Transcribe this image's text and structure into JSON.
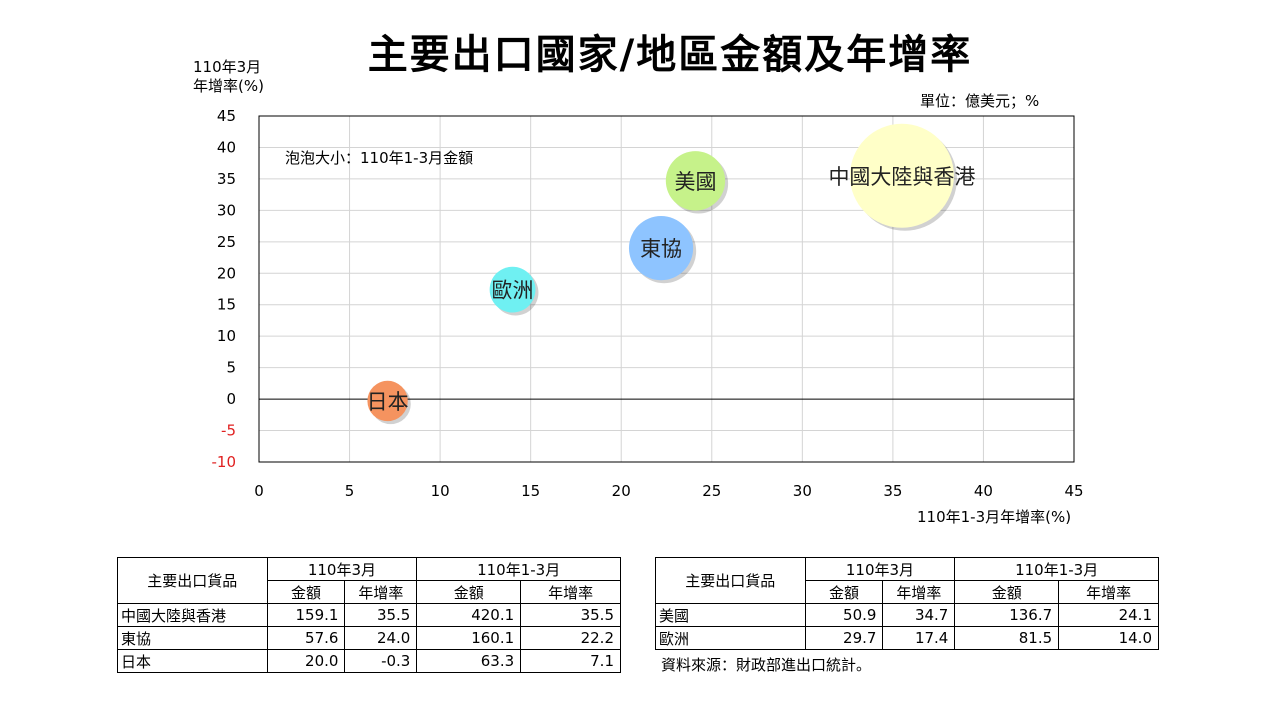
{
  "title": "主要出口國家/地區金額及年增率",
  "unit_label": "單位：億美元；%",
  "bubble_note": "泡泡大小：110年1-3月金額",
  "source": "資料來源：財政部進出口統計。",
  "chart_data": {
    "type": "scatter",
    "title": "主要出口國家/地區金額及年增率",
    "ylabel_lines": [
      "110年3月",
      "年增率(%)"
    ],
    "xlabel": "110年1-3月年增率(%)",
    "xlim": [
      0,
      45
    ],
    "ylim": [
      -10,
      45
    ],
    "x_ticks": [
      "0",
      "5",
      "10",
      "15",
      "20",
      "25",
      "30",
      "35",
      "40",
      "45"
    ],
    "y_ticks": [
      "45",
      "40",
      "35",
      "30",
      "25",
      "20",
      "15",
      "10",
      "5",
      "0",
      "-5",
      "-10"
    ],
    "grid": true,
    "points": [
      {
        "name": "中國大陸與香港",
        "x": 35.5,
        "y": 35.5,
        "size": 420.1,
        "color": "#ffffc8"
      },
      {
        "name": "美國",
        "x": 24.1,
        "y": 34.7,
        "size": 136.7,
        "color": "#c6f28a"
      },
      {
        "name": "東協",
        "x": 22.2,
        "y": 24.0,
        "size": 160.1,
        "color": "#8ec4ff"
      },
      {
        "name": "歐洲",
        "x": 14.0,
        "y": 17.4,
        "size": 81.5,
        "color": "#6ff0f2"
      },
      {
        "name": "日本",
        "x": 7.1,
        "y": -0.3,
        "size": 63.3,
        "color": "#f5935f"
      }
    ]
  },
  "tables": {
    "left": {
      "header_item": "主要出口貨品",
      "period1": "110年3月",
      "period2": "110年1-3月",
      "amount": "金額",
      "growth": "年增率",
      "rows": [
        {
          "name": "中國大陸與香港",
          "v1": "159.1",
          "v2": "35.5",
          "v3": "420.1",
          "v4": "35.5"
        },
        {
          "name": "東協",
          "v1": "57.6",
          "v2": "24.0",
          "v3": "160.1",
          "v4": "22.2"
        },
        {
          "name": "日本",
          "v1": "20.0",
          "v2": "-0.3",
          "v3": "63.3",
          "v4": "7.1"
        }
      ]
    },
    "right": {
      "header_item": "主要出口貨品",
      "period1": "110年3月",
      "period2": "110年1-3月",
      "amount": "金額",
      "growth": "年增率",
      "rows": [
        {
          "name": "美國",
          "v1": "50.9",
          "v2": "34.7",
          "v3": "136.7",
          "v4": "24.1"
        },
        {
          "name": "歐洲",
          "v1": "29.7",
          "v2": "17.4",
          "v3": "81.5",
          "v4": "14.0"
        }
      ]
    }
  }
}
